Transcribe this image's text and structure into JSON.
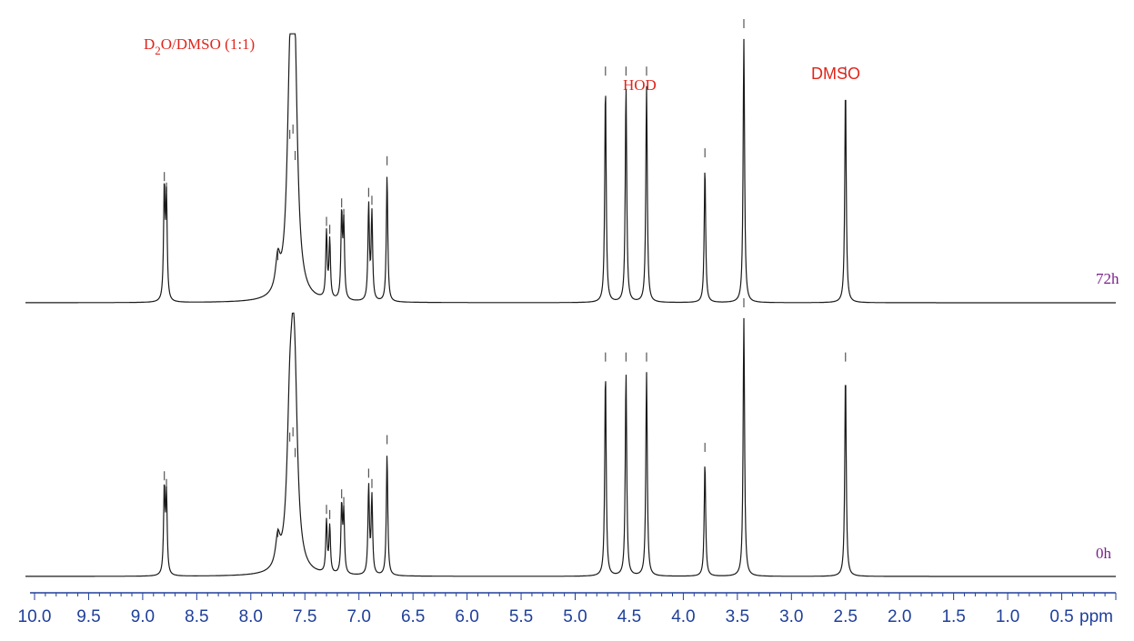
{
  "chart_data": {
    "type": "line",
    "title": "",
    "xlabel": "ppm",
    "ylabel": "",
    "xlim": [
      10.0,
      0.0
    ],
    "x_reversed": true,
    "grid": false,
    "colors": {
      "trace": "#1a1a1a",
      "axis": "#1f3f9a",
      "annotation": "#e0251b",
      "trace_label": "#7a1f8a"
    },
    "tick_labels": [
      "10.0",
      "9.5",
      "9.0",
      "8.5",
      "8.0",
      "7.5",
      "7.0",
      "6.5",
      "6.0",
      "5.5",
      "5.0",
      "4.5",
      "4.0",
      "3.5",
      "3.0",
      "2.5",
      "2.0",
      "1.5",
      "1.0",
      "0.5"
    ],
    "annotations": {
      "solvent_d": "D",
      "solvent_sub": "2",
      "solvent_rest": "O/DMSO (1:1)",
      "hod": "HOD",
      "dmso": "DMSO"
    },
    "series": [
      {
        "name": "72h",
        "peaks": [
          {
            "ppm": 8.8,
            "intensity": 0.42
          },
          {
            "ppm": 8.78,
            "intensity": 0.38
          },
          {
            "ppm": 7.75,
            "intensity": 0.12
          },
          {
            "ppm": 7.64,
            "intensity": 0.58
          },
          {
            "ppm": 7.61,
            "intensity": 0.6
          },
          {
            "ppm": 7.59,
            "intensity": 0.5
          },
          {
            "ppm": 7.3,
            "intensity": 0.25
          },
          {
            "ppm": 7.27,
            "intensity": 0.22
          },
          {
            "ppm": 7.16,
            "intensity": 0.32
          },
          {
            "ppm": 7.14,
            "intensity": 0.28
          },
          {
            "ppm": 6.91,
            "intensity": 0.36
          },
          {
            "ppm": 6.88,
            "intensity": 0.33
          },
          {
            "ppm": 6.74,
            "intensity": 0.48
          },
          {
            "ppm": 4.72,
            "intensity": 0.82
          },
          {
            "ppm": 4.53,
            "intensity": 0.82
          },
          {
            "ppm": 4.34,
            "intensity": 0.82
          },
          {
            "ppm": 3.8,
            "intensity": 0.51
          },
          {
            "ppm": 3.44,
            "intensity": 1.0
          },
          {
            "ppm": 2.5,
            "intensity": 0.82
          }
        ]
      },
      {
        "name": "0h",
        "peaks": [
          {
            "ppm": 8.8,
            "intensity": 0.33
          },
          {
            "ppm": 8.78,
            "intensity": 0.3
          },
          {
            "ppm": 7.75,
            "intensity": 0.11
          },
          {
            "ppm": 7.64,
            "intensity": 0.48
          },
          {
            "ppm": 7.61,
            "intensity": 0.5
          },
          {
            "ppm": 7.59,
            "intensity": 0.42
          },
          {
            "ppm": 7.3,
            "intensity": 0.2
          },
          {
            "ppm": 7.27,
            "intensity": 0.18
          },
          {
            "ppm": 7.16,
            "intensity": 0.26
          },
          {
            "ppm": 7.14,
            "intensity": 0.23
          },
          {
            "ppm": 6.91,
            "intensity": 0.34
          },
          {
            "ppm": 6.88,
            "intensity": 0.3
          },
          {
            "ppm": 6.74,
            "intensity": 0.47
          },
          {
            "ppm": 4.72,
            "intensity": 0.79
          },
          {
            "ppm": 4.53,
            "intensity": 0.79
          },
          {
            "ppm": 4.34,
            "intensity": 0.79
          },
          {
            "ppm": 3.8,
            "intensity": 0.44
          },
          {
            "ppm": 3.44,
            "intensity": 1.0
          },
          {
            "ppm": 2.5,
            "intensity": 0.79
          }
        ]
      }
    ]
  }
}
